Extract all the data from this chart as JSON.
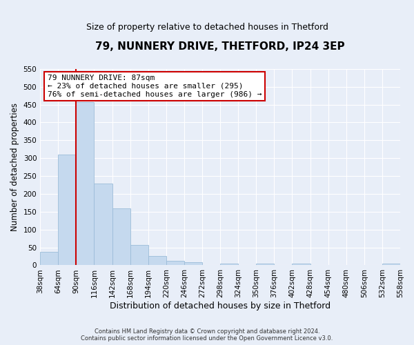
{
  "title": "79, NUNNERY DRIVE, THETFORD, IP24 3EP",
  "subtitle": "Size of property relative to detached houses in Thetford",
  "xlabel": "Distribution of detached houses by size in Thetford",
  "ylabel": "Number of detached properties",
  "bar_values": [
    38,
    310,
    457,
    229,
    160,
    57,
    26,
    12,
    9,
    0,
    4,
    0,
    4,
    0,
    4,
    0,
    0,
    0,
    0,
    4
  ],
  "bar_labels": [
    "38sqm",
    "64sqm",
    "90sqm",
    "116sqm",
    "142sqm",
    "168sqm",
    "194sqm",
    "220sqm",
    "246sqm",
    "272sqm",
    "298sqm",
    "324sqm",
    "350sqm",
    "376sqm",
    "402sqm",
    "428sqm",
    "454sqm",
    "480sqm",
    "506sqm",
    "532sqm",
    "558sqm"
  ],
  "bar_color": "#c5d9ee",
  "bar_edge_color": "#9bbcd8",
  "vline_x_index": 2,
  "vline_color": "#cc0000",
  "annotation_title": "79 NUNNERY DRIVE: 87sqm",
  "annotation_line1": "← 23% of detached houses are smaller (295)",
  "annotation_line2": "76% of semi-detached houses are larger (986) →",
  "annotation_box_color": "#ffffff",
  "annotation_box_edge": "#cc0000",
  "ylim": [
    0,
    550
  ],
  "yticks": [
    0,
    50,
    100,
    150,
    200,
    250,
    300,
    350,
    400,
    450,
    500,
    550
  ],
  "footer_line1": "Contains HM Land Registry data © Crown copyright and database right 2024.",
  "footer_line2": "Contains public sector information licensed under the Open Government Licence v3.0.",
  "bg_color": "#e8eef8",
  "plot_bg_color": "#e8eef8",
  "grid_color": "#ffffff",
  "title_fontsize": 11,
  "subtitle_fontsize": 9,
  "tick_fontsize": 7.5,
  "ylabel_fontsize": 8.5,
  "xlabel_fontsize": 9
}
